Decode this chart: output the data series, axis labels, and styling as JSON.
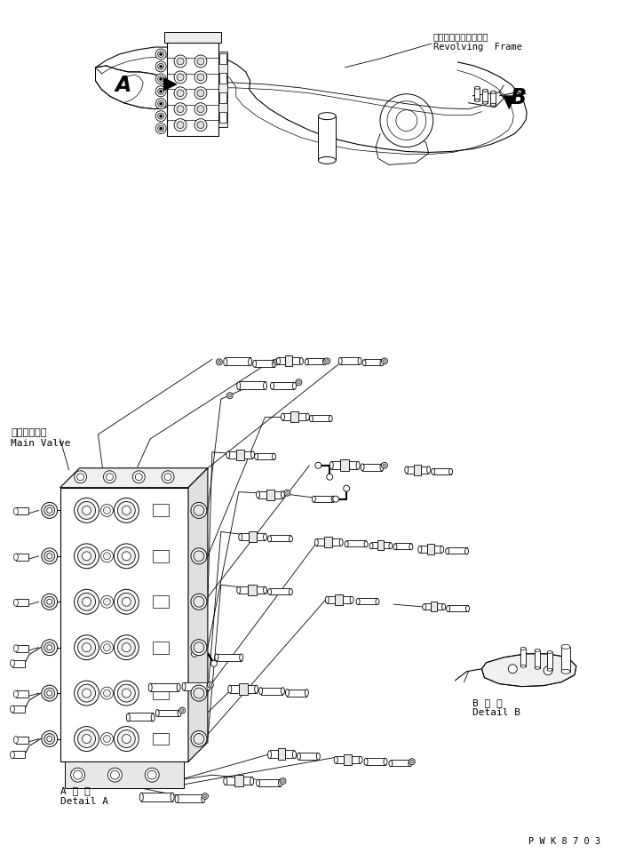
{
  "bg_color": "#ffffff",
  "line_color": "#000000",
  "figsize": [
    6.97,
    9.7
  ],
  "dpi": 100,
  "label_A": "A",
  "label_B": "B",
  "label_revolving_frame_jp": "レボルビングフレーム",
  "label_revolving_frame_en": "Revolving  Frame",
  "label_main_valve_jp": "メインバルブ",
  "label_main_valve_en": "Main Valve",
  "label_detail_A_jp": "A 詳 細",
  "label_detail_A_en": "Detail A",
  "label_detail_B_jp": "B 詳 細",
  "label_detail_B_en": "Detail B",
  "label_PWK": "P W K 8 7 0 3"
}
